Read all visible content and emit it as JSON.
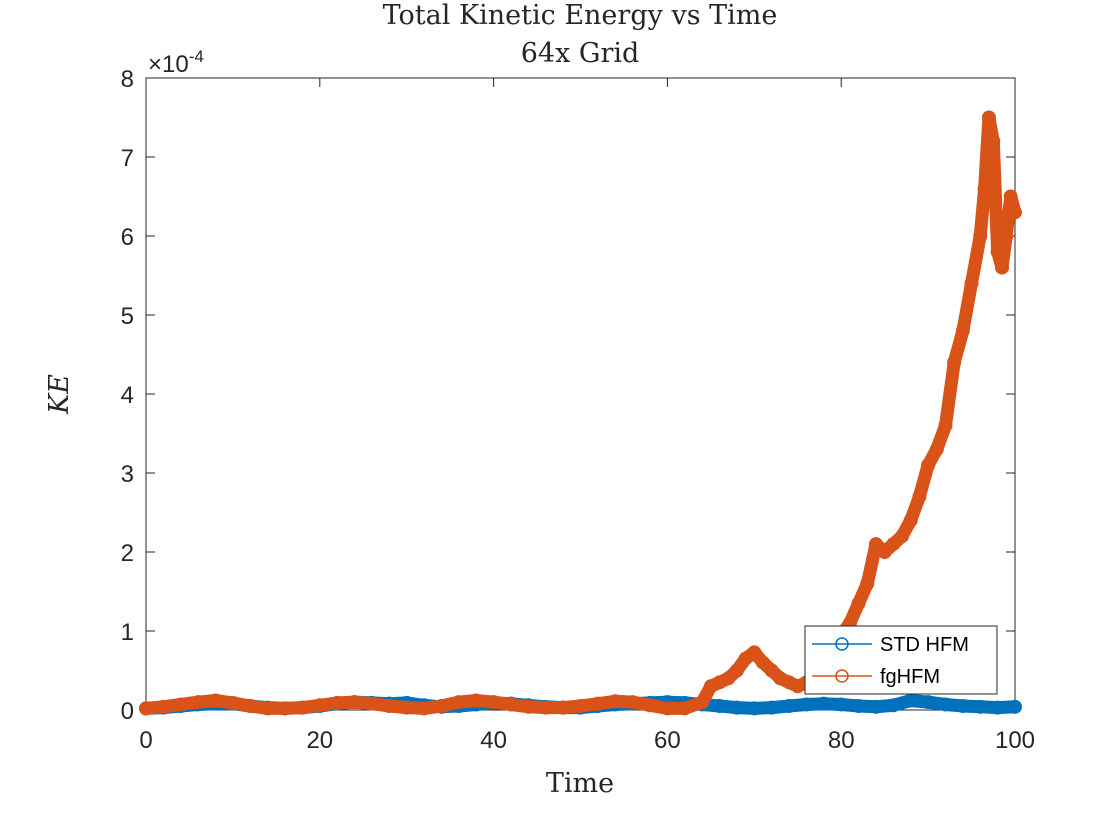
{
  "chart_data": {
    "type": "line",
    "title": "Total Kinetic Energy vs Time",
    "subtitle": "64x Grid",
    "xlabel": "Time",
    "ylabel": "KE",
    "y_exponent_label": "×10",
    "y_exponent_power": "-4",
    "xlim": [
      0,
      100
    ],
    "ylim": [
      0,
      8
    ],
    "x_ticks": [
      "0",
      "20",
      "40",
      "60",
      "80",
      "100"
    ],
    "y_ticks": [
      "0",
      "1",
      "2",
      "3",
      "4",
      "5",
      "6",
      "7",
      "8"
    ],
    "grid": false,
    "legend_position": "bottom-right",
    "series": [
      {
        "name": "STD HFM",
        "color": "#0072BD",
        "marker": "circle",
        "x": [
          0,
          2,
          4,
          6,
          8,
          10,
          12,
          14,
          16,
          18,
          20,
          22,
          24,
          26,
          28,
          30,
          32,
          34,
          36,
          38,
          40,
          42,
          44,
          46,
          48,
          50,
          52,
          54,
          56,
          58,
          60,
          62,
          64,
          66,
          68,
          70,
          72,
          74,
          76,
          78,
          80,
          82,
          84,
          86,
          88,
          90,
          92,
          94,
          96,
          98,
          100
        ],
        "values": [
          0.02,
          0.03,
          0.05,
          0.07,
          0.08,
          0.08,
          0.05,
          0.03,
          0.02,
          0.03,
          0.05,
          0.08,
          0.1,
          0.09,
          0.08,
          0.09,
          0.06,
          0.04,
          0.05,
          0.07,
          0.09,
          0.08,
          0.06,
          0.04,
          0.03,
          0.03,
          0.05,
          0.07,
          0.08,
          0.09,
          0.1,
          0.09,
          0.07,
          0.05,
          0.03,
          0.02,
          0.03,
          0.05,
          0.07,
          0.08,
          0.07,
          0.05,
          0.04,
          0.06,
          0.12,
          0.1,
          0.07,
          0.05,
          0.04,
          0.03,
          0.04
        ]
      },
      {
        "name": "fgHFM",
        "color": "#D95319",
        "marker": "circle",
        "x": [
          0,
          2,
          4,
          6,
          8,
          10,
          12,
          14,
          16,
          18,
          20,
          22,
          24,
          26,
          28,
          30,
          32,
          34,
          36,
          38,
          40,
          42,
          44,
          46,
          48,
          50,
          52,
          54,
          56,
          58,
          60,
          62,
          64,
          65,
          66,
          67,
          68,
          69,
          70,
          71,
          72,
          73,
          74,
          75,
          76,
          77,
          78,
          79,
          80,
          81,
          82,
          83,
          84,
          85,
          86,
          87,
          88,
          89,
          90,
          91,
          92,
          93,
          94,
          95,
          96,
          96.5,
          97,
          97.5,
          98,
          98.5,
          99,
          99.5,
          100
        ],
        "values": [
          0.02,
          0.04,
          0.07,
          0.1,
          0.12,
          0.09,
          0.05,
          0.02,
          0.02,
          0.03,
          0.06,
          0.09,
          0.1,
          0.08,
          0.05,
          0.03,
          0.02,
          0.05,
          0.1,
          0.12,
          0.1,
          0.07,
          0.04,
          0.03,
          0.03,
          0.05,
          0.08,
          0.11,
          0.1,
          0.06,
          0.02,
          0.02,
          0.1,
          0.3,
          0.35,
          0.4,
          0.5,
          0.65,
          0.73,
          0.6,
          0.5,
          0.4,
          0.35,
          0.3,
          0.35,
          0.45,
          0.55,
          0.75,
          0.95,
          1.1,
          1.35,
          1.6,
          2.1,
          2.0,
          2.1,
          2.2,
          2.4,
          2.7,
          3.1,
          3.3,
          3.6,
          4.4,
          4.8,
          5.4,
          6.0,
          6.6,
          7.5,
          7.2,
          5.8,
          5.6,
          6.0,
          6.5,
          6.3
        ]
      }
    ]
  }
}
